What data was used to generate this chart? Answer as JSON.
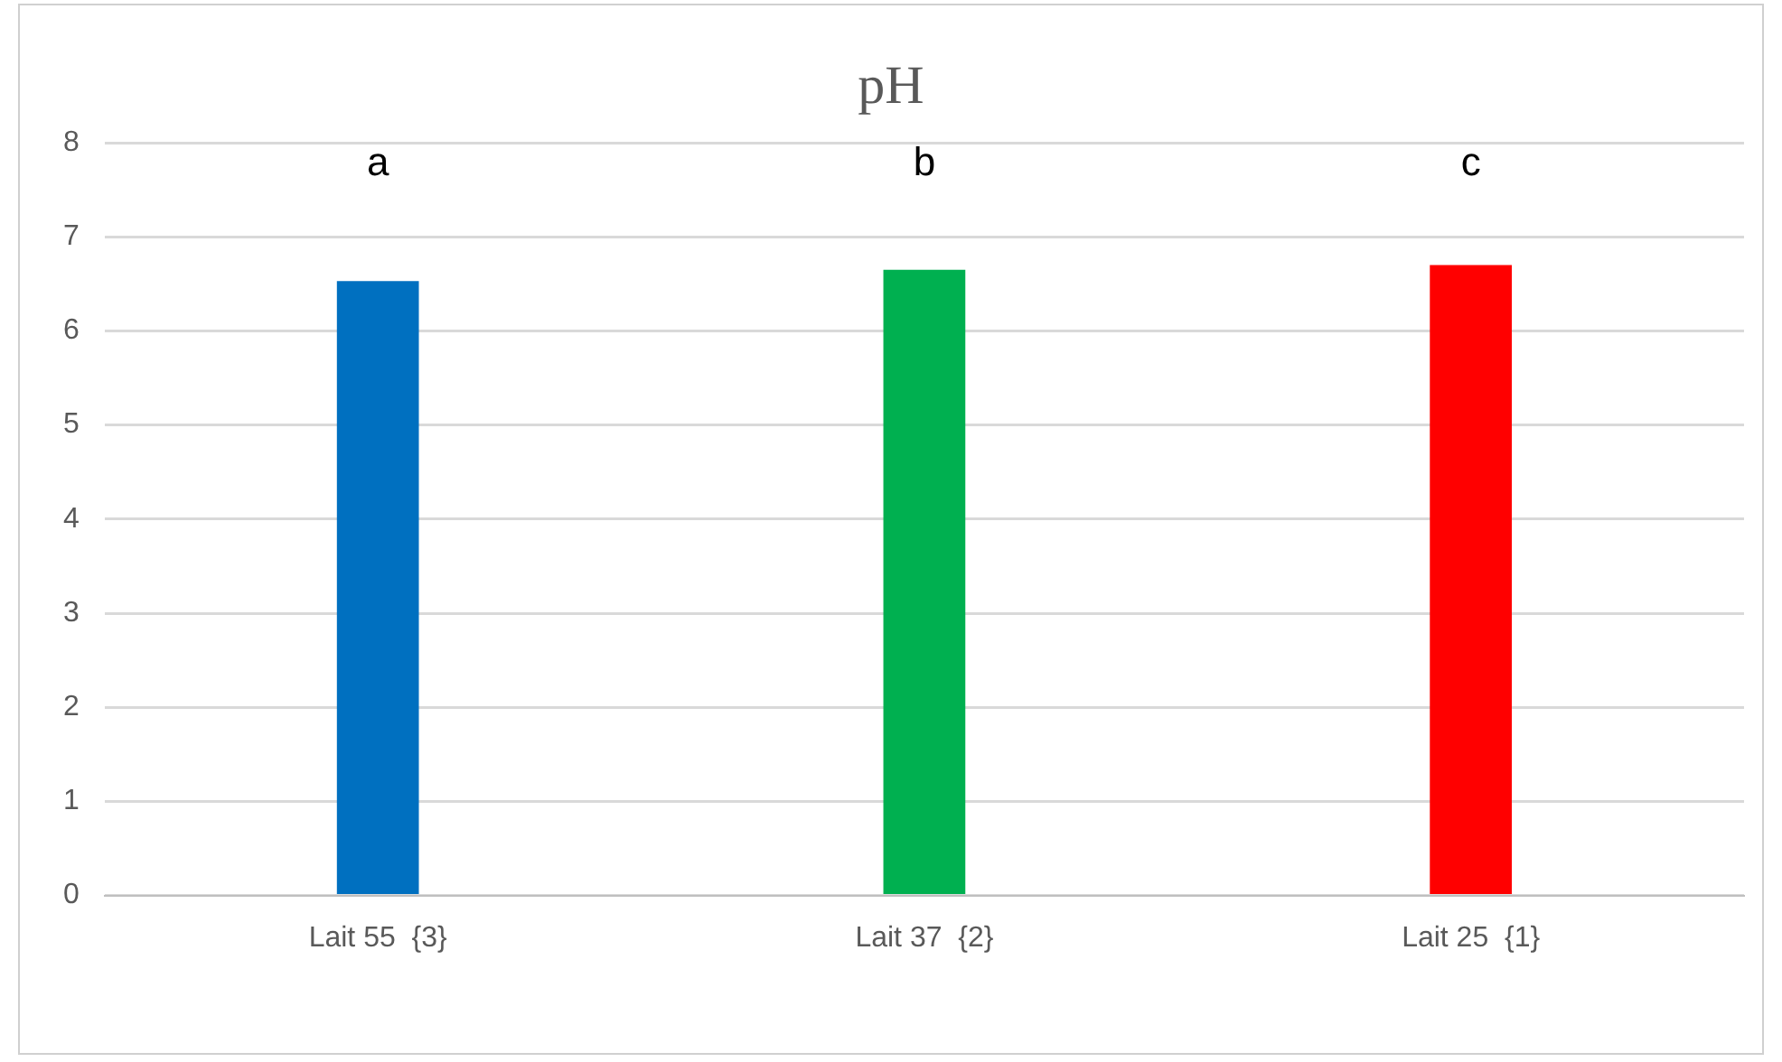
{
  "chart_data": {
    "type": "bar",
    "title": "pH",
    "categories": [
      "Lait 55  {3}",
      "Lait 37  {2}",
      "Lait 25  {1}"
    ],
    "values": [
      6.53,
      6.65,
      6.7
    ],
    "colors": [
      "#0070c0",
      "#00b050",
      "#ff0000"
    ],
    "ylim": [
      0,
      8
    ],
    "yticks": [
      0,
      1,
      2,
      3,
      4,
      5,
      6,
      7,
      8
    ],
    "grid": "y",
    "legend": false,
    "annotations": [
      "a",
      "b",
      "c"
    ]
  }
}
